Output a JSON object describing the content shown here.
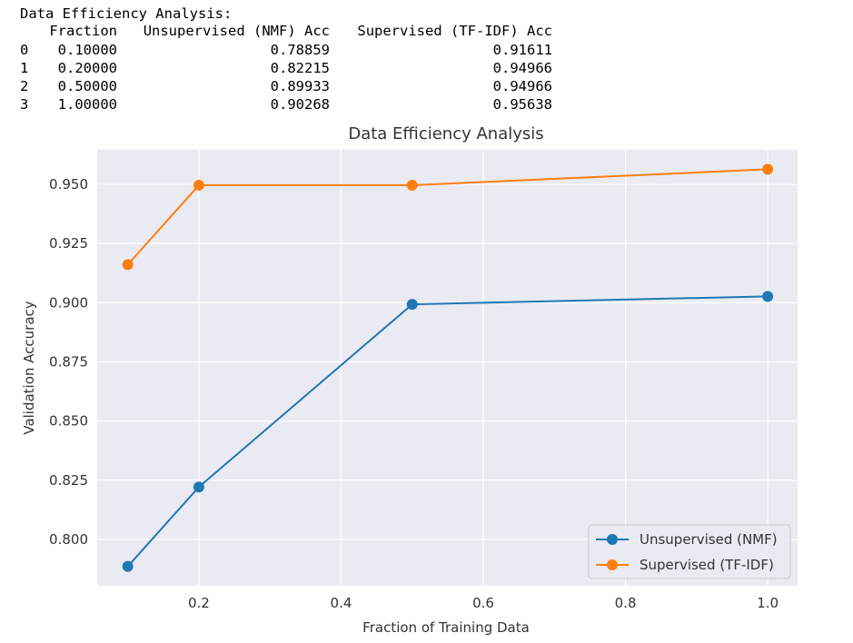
{
  "table": {
    "title": "Data Efficiency Analysis:",
    "columns": [
      "Fraction",
      "Unsupervised (NMF) Acc",
      "Supervised (TF-IDF) Acc"
    ],
    "rows": [
      [
        "0",
        "0.10000",
        "0.78859",
        "0.91611"
      ],
      [
        "1",
        "0.20000",
        "0.82215",
        "0.94966"
      ],
      [
        "2",
        "0.50000",
        "0.89933",
        "0.94966"
      ],
      [
        "3",
        "1.00000",
        "0.90268",
        "0.95638"
      ]
    ]
  },
  "chart_data": {
    "type": "line",
    "title": "Data Efficiency Analysis",
    "x_label": "Fraction of Training Data",
    "y_label": "Validation Accuracy",
    "x": [
      0.1,
      0.2,
      0.5,
      1.0
    ],
    "series": [
      {
        "name": "Unsupervised (NMF)",
        "color": "#1f77b4",
        "values": [
          0.78859,
          0.82215,
          0.89933,
          0.90268
        ]
      },
      {
        "name": "Supervised (TF-IDF)",
        "color": "#ff7f0e",
        "values": [
          0.91611,
          0.94966,
          0.94966,
          0.95638
        ]
      }
    ],
    "xlim": [
      0.057,
      1.042
    ],
    "ylim": [
      0.7804,
      0.9646
    ],
    "xticks": [
      0.2,
      0.4,
      0.6,
      0.8,
      {
        "value": 1,
        "label": "1.0"
      }
    ],
    "yticks": [
      {
        "value": 0.8,
        "label": "0.800"
      },
      {
        "value": 0.825,
        "label": "0.825"
      },
      {
        "value": 0.85,
        "label": "0.850"
      },
      {
        "value": 0.875,
        "label": "0.875"
      },
      {
        "value": 0.9,
        "label": "0.900"
      },
      {
        "value": 0.925,
        "label": "0.925"
      },
      {
        "value": 0.95,
        "label": "0.950"
      }
    ],
    "grid": true,
    "legend": "lower right"
  }
}
